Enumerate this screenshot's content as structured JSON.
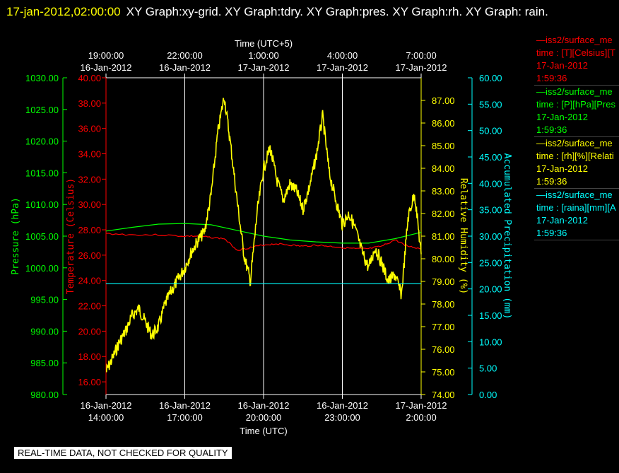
{
  "header": {
    "timestamp": "17-jan-2012,02:00:00",
    "title": "XY Graph:xy-grid.  XY Graph:tdry.  XY Graph:pres.  XY Graph:rh.  XY Graph: rain."
  },
  "colors": {
    "temperature": "#ff0000",
    "pressure": "#00ff00",
    "humidity": "#ffff00",
    "precip": "#00ffff",
    "grid": "#ffffff"
  },
  "legend": [
    {
      "line": "—iss2/surface_me",
      "field": "time : [T][Celsius][T",
      "date": "17-Jan-2012",
      "time": "1:59:36",
      "color_key": "temperature"
    },
    {
      "line": "—iss2/surface_me",
      "field": "time : [P][hPa][Pres",
      "date": "17-Jan-2012",
      "time": "1:59:36",
      "color_key": "pressure"
    },
    {
      "line": "—iss2/surface_me",
      "field": "time : [rh][%][Relati",
      "date": "17-Jan-2012",
      "time": "1:59:36",
      "color_key": "humidity"
    },
    {
      "line": "—iss2/surface_me",
      "field": "time : [raina][mm][A",
      "date": "17-Jan-2012",
      "time": "1:59:36",
      "color_key": "precip"
    }
  ],
  "quality_note": "REAL-TIME DATA, NOT CHECKED FOR QUALITY",
  "chart_data": {
    "type": "line",
    "x_bottom": {
      "label": "Time (UTC)",
      "range": [
        "16-Jan-2012 14:00:00",
        "17-Jan-2012 02:00:00"
      ],
      "ticks": [
        {
          "date": "16-Jan-2012",
          "time": "14:00:00"
        },
        {
          "date": "16-Jan-2012",
          "time": "17:00:00"
        },
        {
          "date": "16-Jan-2012",
          "time": "20:00:00"
        },
        {
          "date": "16-Jan-2012",
          "time": "23:00:00"
        },
        {
          "date": "17-Jan-2012",
          "time": "2:00:00"
        }
      ]
    },
    "x_top": {
      "label": "Time (UTC+5)",
      "ticks": [
        {
          "time": "19:00:00",
          "date": "16-Jan-2012"
        },
        {
          "time": "22:00:00",
          "date": "16-Jan-2012"
        },
        {
          "time": "1:00:00",
          "date": "17-Jan-2012"
        },
        {
          "time": "4:00:00",
          "date": "17-Jan-2012"
        },
        {
          "time": "7:00:00",
          "date": "17-Jan-2012"
        }
      ]
    },
    "y_axes": {
      "pressure": {
        "label": "Pressure (hPa)",
        "range": [
          980,
          1030
        ],
        "ticks": [
          "980.00",
          "985.00",
          "990.00",
          "995.00",
          "1000.00",
          "1005.00",
          "1010.00",
          "1015.00",
          "1020.00",
          "1025.00",
          "1030.00"
        ]
      },
      "temperature": {
        "label": "Temperature (Celsius)",
        "range": [
          15,
          40
        ],
        "ticks": [
          "16.00",
          "18.00",
          "20.00",
          "22.00",
          "24.00",
          "26.00",
          "28.00",
          "30.00",
          "32.00",
          "34.00",
          "36.00",
          "38.00",
          "40.00"
        ]
      },
      "humidity": {
        "label": "Relative Humidity (%)",
        "range": [
          74,
          88
        ],
        "ticks": [
          "74.00",
          "75.00",
          "76.00",
          "77.00",
          "78.00",
          "79.00",
          "80.00",
          "81.00",
          "82.00",
          "83.00",
          "84.00",
          "85.00",
          "86.00",
          "87.00"
        ]
      },
      "precip": {
        "label": "Accumulated Precipitation (mm)",
        "range": [
          0,
          60
        ],
        "ticks": [
          "0.00",
          "5.00",
          "10.00",
          "15.00",
          "20.00",
          "25.00",
          "30.00",
          "35.00",
          "40.00",
          "45.00",
          "50.00",
          "55.00",
          "60.00"
        ]
      }
    },
    "grid": true,
    "series": [
      {
        "key": "temperature",
        "axis": "temperature",
        "x_hours": [
          0,
          1,
          2,
          3,
          3.5,
          4,
          4.5,
          5,
          5.5,
          6,
          6.5,
          7,
          7.5,
          8,
          8.5,
          9,
          9.5,
          10,
          10.5,
          11,
          11.5,
          12
        ],
        "values": [
          27.7,
          27.6,
          27.6,
          27.5,
          27.5,
          27.4,
          27.3,
          26.4,
          26.6,
          26.8,
          26.9,
          26.8,
          26.7,
          26.8,
          26.7,
          26.6,
          26.5,
          26.5,
          26.7,
          27.2,
          26.7,
          26.5
        ]
      },
      {
        "key": "pressure",
        "axis": "pressure",
        "x_hours": [
          0,
          1,
          2,
          3,
          4,
          5,
          6,
          7,
          8,
          9,
          10,
          11,
          12
        ],
        "values": [
          1005.8,
          1006.4,
          1006.9,
          1007.0,
          1006.8,
          1005.9,
          1005.0,
          1004.4,
          1004.1,
          1003.9,
          1003.9,
          1004.6,
          1005.6
        ]
      },
      {
        "key": "humidity",
        "axis": "humidity",
        "x_hours": [
          0,
          0.25,
          0.5,
          0.75,
          1,
          1.25,
          1.5,
          1.75,
          2,
          2.25,
          2.5,
          2.75,
          3,
          3.25,
          3.5,
          3.75,
          4,
          4.25,
          4.5,
          4.75,
          5,
          5.25,
          5.5,
          5.75,
          6,
          6.25,
          6.5,
          6.75,
          7,
          7.25,
          7.5,
          7.75,
          8,
          8.25,
          8.5,
          8.75,
          9,
          9.25,
          9.5,
          9.75,
          10,
          10.25,
          10.5,
          10.75,
          11,
          11.25,
          11.5,
          11.75,
          12
        ],
        "values": [
          75.0,
          75.6,
          76.3,
          76.8,
          77.5,
          77.8,
          77.2,
          76.6,
          77.0,
          78.0,
          78.6,
          79.1,
          79.6,
          80.3,
          80.8,
          81.2,
          82.8,
          85.5,
          87.2,
          85.0,
          82.5,
          80.2,
          79.0,
          82.0,
          84.0,
          84.9,
          83.5,
          82.6,
          83.3,
          83.0,
          82.2,
          83.2,
          84.5,
          86.3,
          83.8,
          82.6,
          81.5,
          82.0,
          81.3,
          80.3,
          79.6,
          80.5,
          79.8,
          79.0,
          79.3,
          78.4,
          81.8,
          82.9,
          80.2
        ]
      },
      {
        "key": "precip",
        "axis": "precip",
        "x_hours": [
          0,
          12
        ],
        "values": [
          21.0,
          21.0
        ]
      }
    ]
  }
}
